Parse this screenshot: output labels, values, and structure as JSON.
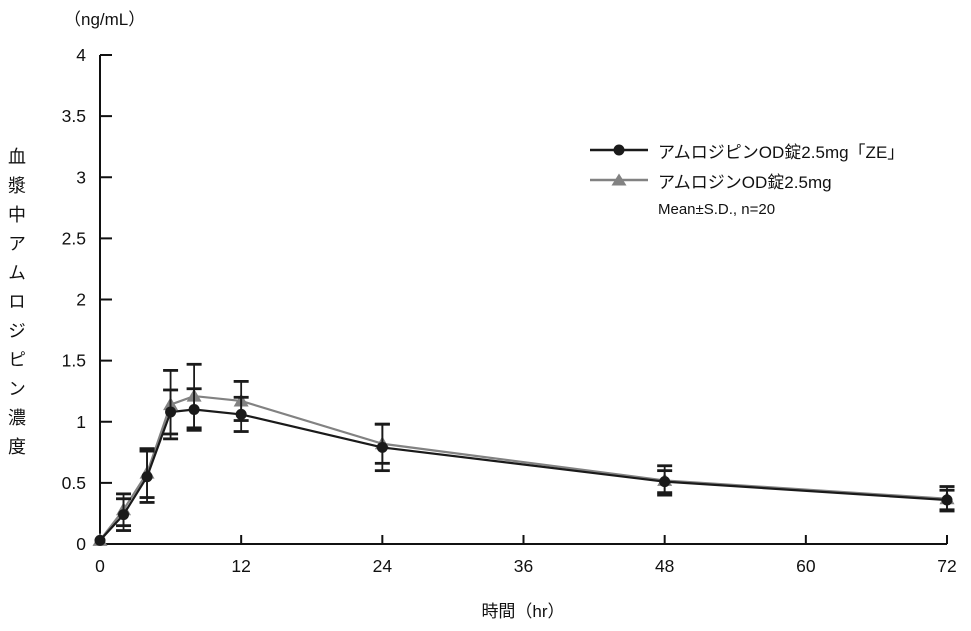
{
  "colors": {
    "axis": "#111111",
    "error_bar": "#1a1a1a",
    "background": "#ffffff"
  },
  "y_axis": {
    "units_label": "（ng/mL）",
    "title_vertical": "血漿中アムロジピン濃度",
    "min": 0,
    "max": 4,
    "ticks": [
      0,
      0.5,
      1,
      1.5,
      2,
      2.5,
      3,
      3.5,
      4
    ],
    "tick_labels": [
      "0",
      "0.5",
      "1",
      "1.5",
      "2",
      "2.5",
      "3",
      "3.5",
      "4"
    ]
  },
  "x_axis": {
    "title": "時間（hr）",
    "min": 0,
    "max": 72,
    "ticks": [
      0,
      12,
      24,
      36,
      48,
      60,
      72
    ],
    "tick_labels": [
      "0",
      "12",
      "24",
      "36",
      "48",
      "60",
      "72"
    ]
  },
  "legend": {
    "note": "Mean±S.D., n=20"
  },
  "chart_data": {
    "type": "line",
    "title": "",
    "xlabel": "時間（hr）",
    "ylabel": "血漿中アムロジピン濃度（ng/mL）",
    "xlim": [
      0,
      72
    ],
    "ylim": [
      0,
      4
    ],
    "grid": false,
    "legend_position": "upper-right",
    "error_bars": "Mean±S.D., n=20",
    "x": [
      0,
      2,
      4,
      6,
      8,
      12,
      24,
      48,
      72
    ],
    "series": [
      {
        "name": "アムロジピンOD錠2.5mg「ZE」",
        "marker": "circle",
        "color": "#1a1a1a",
        "values": [
          0.03,
          0.24,
          0.55,
          1.08,
          1.1,
          1.06,
          0.79,
          0.51,
          0.36
        ],
        "sd": [
          0,
          0.13,
          0.21,
          0.18,
          0.17,
          0.14,
          0.19,
          0.09,
          0.08
        ]
      },
      {
        "name": "アムロジンOD錠2.5mg",
        "marker": "triangle",
        "color": "#828282",
        "values": [
          0.03,
          0.28,
          0.58,
          1.14,
          1.21,
          1.17,
          0.82,
          0.52,
          0.37
        ],
        "sd": [
          0,
          0.13,
          0.2,
          0.28,
          0.26,
          0.16,
          0.16,
          0.12,
          0.1
        ]
      }
    ]
  }
}
